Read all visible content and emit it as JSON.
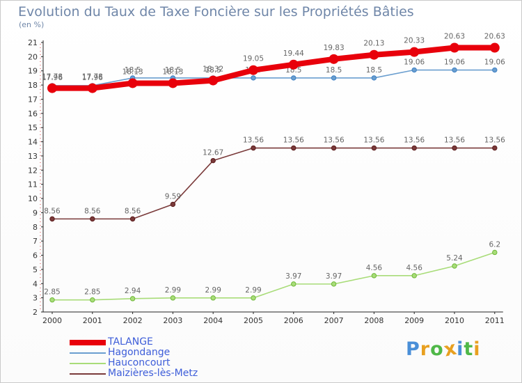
{
  "page": {
    "title": "Evolution du Taux de Taxe Foncière sur les Propriétés Bâties",
    "unit": "(en %)",
    "logo": {
      "letters": [
        "P",
        "r",
        "o",
        "x",
        "i",
        "t",
        "i"
      ],
      "colors": [
        "#4a8fd8",
        "#e8a020",
        "#4fb848",
        "#e8a020",
        "#4a8fd8",
        "#4fb848",
        "#e8a020"
      ]
    }
  },
  "chart_data": {
    "type": "line",
    "title": "Evolution du Taux de Taxe Foncière sur les Propriétés Bâties",
    "ylabel": "(en %)",
    "categories": [
      "2000",
      "2001",
      "2002",
      "2003",
      "2004",
      "2005",
      "2006",
      "2007",
      "2008",
      "2009",
      "2010",
      "2011"
    ],
    "ylim": [
      2,
      21
    ],
    "yticks": [
      2,
      3,
      4,
      5,
      6,
      7,
      8,
      9,
      10,
      11,
      12,
      13,
      14,
      15,
      16,
      17,
      18,
      19,
      20,
      21
    ],
    "grid": false,
    "legend_position": "bottom-left",
    "series": [
      {
        "name": "TALANGE",
        "color": "#e8000b",
        "style": "thick",
        "values": [
          17.78,
          17.78,
          18.13,
          18.13,
          18.32,
          19.05,
          19.44,
          19.83,
          20.13,
          20.33,
          20.63,
          20.63
        ],
        "labels": [
          "17.78",
          "17.78",
          "18.13",
          "18.13",
          "18.32",
          "19.05",
          "19.44",
          "19.83",
          "20.13",
          "20.33",
          "20.63",
          "20.63"
        ]
      },
      {
        "name": "Hagondange",
        "color": "#6a9ecf",
        "style": "thin",
        "values": [
          17.96,
          17.96,
          18.5,
          18.5,
          18.5,
          18.5,
          18.5,
          18.5,
          18.5,
          19.06,
          19.06,
          19.06
        ],
        "labels": [
          "17.96",
          "17.96",
          "18.5",
          "18.5",
          "18.5",
          "18.5",
          "18.5",
          "18.5",
          "18.5",
          "19.06",
          "19.06",
          "19.06"
        ]
      },
      {
        "name": "Hauconcourt",
        "color": "#a8dc78",
        "style": "thin",
        "values": [
          2.85,
          2.85,
          2.94,
          2.99,
          2.99,
          2.99,
          3.97,
          3.97,
          4.56,
          4.56,
          5.24,
          6.2
        ],
        "labels": [
          "2.85",
          "2.85",
          "2.94",
          "2.99",
          "2.99",
          "2.99",
          "3.97",
          "3.97",
          "4.56",
          "4.56",
          "5.24",
          "6.2"
        ]
      },
      {
        "name": "Maizières-lès-Metz",
        "color": "#7a3a3a",
        "style": "thin",
        "values": [
          8.56,
          8.56,
          8.56,
          9.59,
          12.67,
          13.56,
          13.56,
          13.56,
          13.56,
          13.56,
          13.56,
          13.56
        ],
        "labels": [
          "8.56",
          "8.56",
          "8.56",
          "9.59",
          "12.67",
          "13.56",
          "13.56",
          "13.56",
          "13.56",
          "13.56",
          "13.56",
          "13.56"
        ]
      }
    ]
  }
}
